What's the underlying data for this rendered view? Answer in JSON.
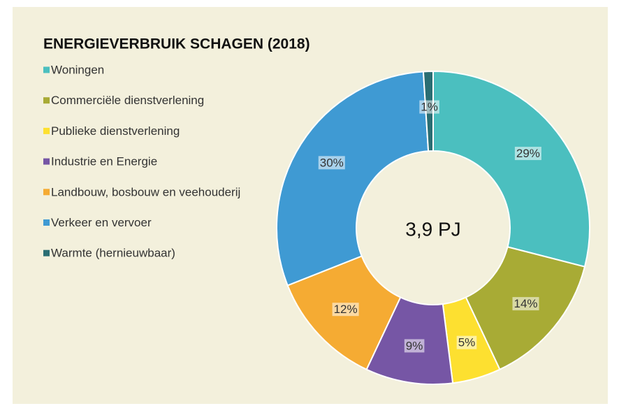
{
  "chart_data": {
    "type": "donut",
    "title": "ENERGIEVERBRUIK SCHAGEN (2018)",
    "center_label": "3,9 PJ",
    "categories": [
      "Woningen",
      "Commerciële dienstverlening",
      "Publieke dienstverlening",
      "Industrie en Energie",
      "Landbouw, bosbouw en veehouderij",
      "Verkeer en vervoer",
      "Warmte (hernieuwbaar)"
    ],
    "values": [
      29,
      14,
      5,
      9,
      12,
      30,
      1
    ],
    "value_labels": [
      "29%",
      "14%",
      "5%",
      "9%",
      "12%",
      "30%",
      "1%"
    ],
    "colors": [
      "#4bbfbf",
      "#a8ab35",
      "#fde030",
      "#7656a5",
      "#f5ab33",
      "#3f9ad3",
      "#2a6e73"
    ],
    "legend": "left"
  }
}
